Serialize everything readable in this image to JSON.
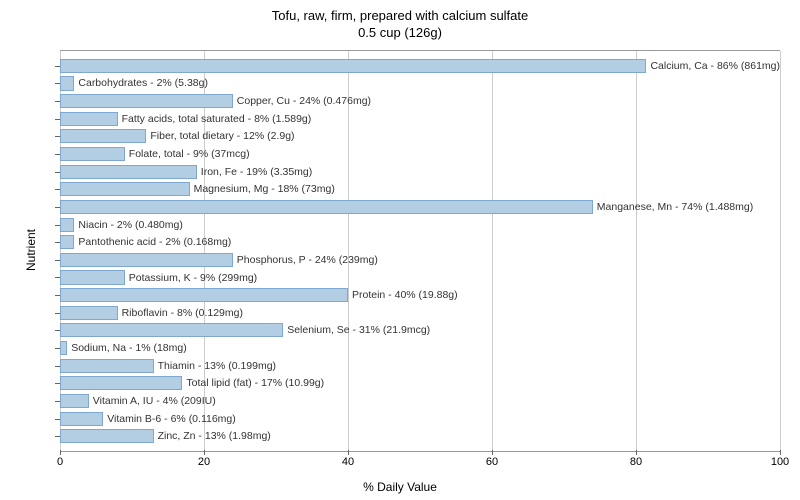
{
  "title_line1": "Tofu, raw, firm, prepared with calcium sulfate",
  "title_line2": "0.5 cup (126g)",
  "x_axis_label": "% Daily Value",
  "y_axis_label": "Nutrient",
  "x_max": 100,
  "x_ticks": [
    0,
    20,
    40,
    60,
    80,
    100
  ],
  "bar_fill_color": "#b3cde3",
  "bar_border_color": "#7fa8d1",
  "grid_color": "#cccccc",
  "background_color": "#ffffff",
  "title_fontsize": 13,
  "label_fontsize": 12,
  "tick_fontsize": 11,
  "bar_label_fontsize": 10.5,
  "nutrients": [
    {
      "value": 86,
      "label": "Calcium, Ca - 86% (861mg)"
    },
    {
      "value": 2,
      "label": "Carbohydrates - 2% (5.38g)"
    },
    {
      "value": 24,
      "label": "Copper, Cu - 24% (0.476mg)"
    },
    {
      "value": 8,
      "label": "Fatty acids, total saturated - 8% (1.589g)"
    },
    {
      "value": 12,
      "label": "Fiber, total dietary - 12% (2.9g)"
    },
    {
      "value": 9,
      "label": "Folate, total - 9% (37mcg)"
    },
    {
      "value": 19,
      "label": "Iron, Fe - 19% (3.35mg)"
    },
    {
      "value": 18,
      "label": "Magnesium, Mg - 18% (73mg)"
    },
    {
      "value": 74,
      "label": "Manganese, Mn - 74% (1.488mg)"
    },
    {
      "value": 2,
      "label": "Niacin - 2% (0.480mg)"
    },
    {
      "value": 2,
      "label": "Pantothenic acid - 2% (0.168mg)"
    },
    {
      "value": 24,
      "label": "Phosphorus, P - 24% (239mg)"
    },
    {
      "value": 9,
      "label": "Potassium, K - 9% (299mg)"
    },
    {
      "value": 40,
      "label": "Protein - 40% (19.88g)"
    },
    {
      "value": 8,
      "label": "Riboflavin - 8% (0.129mg)"
    },
    {
      "value": 31,
      "label": "Selenium, Se - 31% (21.9mcg)"
    },
    {
      "value": 1,
      "label": "Sodium, Na - 1% (18mg)"
    },
    {
      "value": 13,
      "label": "Thiamin - 13% (0.199mg)"
    },
    {
      "value": 17,
      "label": "Total lipid (fat) - 17% (10.99g)"
    },
    {
      "value": 4,
      "label": "Vitamin A, IU - 4% (209IU)"
    },
    {
      "value": 6,
      "label": "Vitamin B-6 - 6% (0.116mg)"
    },
    {
      "value": 13,
      "label": "Zinc, Zn - 13% (1.98mg)"
    }
  ]
}
